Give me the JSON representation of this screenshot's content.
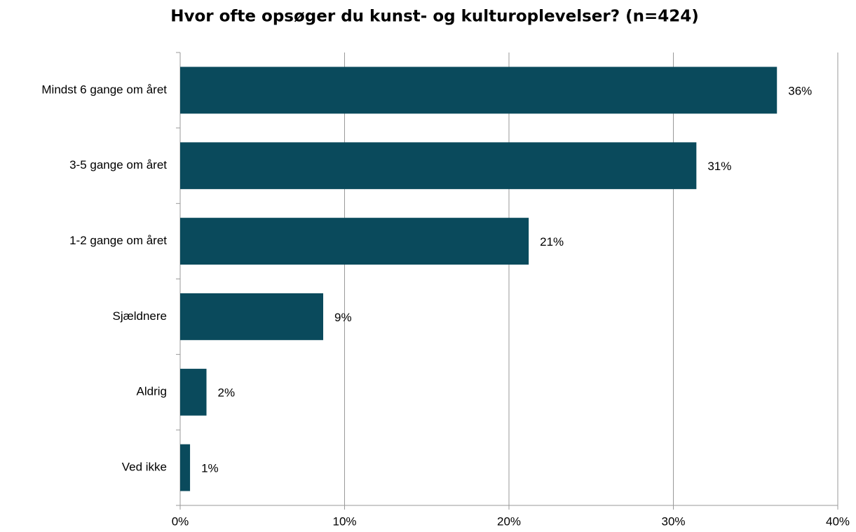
{
  "chart_data": {
    "type": "bar",
    "orientation": "horizontal",
    "title": "Hvor ofte opsøger du kunst- og kulturoplevelser? (n=424)",
    "categories": [
      "Mindst 6 gange om året",
      "3-5 gange om året",
      "1-2 gange om året",
      "Sjældnere",
      "Aldrig",
      "Ved ikke"
    ],
    "values": [
      36.3,
      31.4,
      21.2,
      8.7,
      1.6,
      0.6
    ],
    "value_labels": [
      "36%",
      "31%",
      "21%",
      "9%",
      "2%",
      "1%"
    ],
    "color": "#0a4a5c",
    "xlim": [
      0,
      40
    ],
    "xticks": [
      {
        "value": 0,
        "label": "0%"
      },
      {
        "value": 10,
        "label": "10%"
      },
      {
        "value": 20,
        "label": "20%"
      },
      {
        "value": 30,
        "label": "30%"
      },
      {
        "value": 40,
        "label": "40%"
      }
    ],
    "grid": true
  }
}
